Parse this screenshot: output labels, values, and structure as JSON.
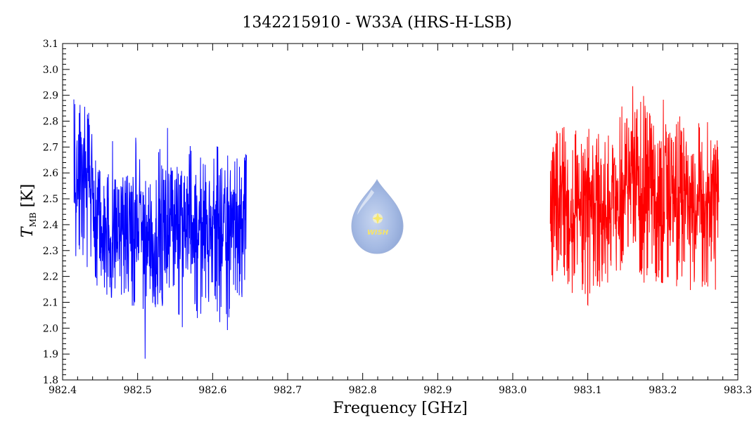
{
  "chart_data": {
    "type": "line",
    "title": "1342215910 - W33A (HRS-H-LSB)",
    "xlabel": "Frequency [GHz]",
    "ylabel_main": "T",
    "ylabel_sub": "MB",
    "ylabel_unit": "[K]",
    "xlim": [
      982.4,
      983.3
    ],
    "ylim": [
      1.8,
      3.1
    ],
    "xticks": [
      "982.4",
      "982.5",
      "982.6",
      "982.7",
      "982.8",
      "982.9",
      "983.0",
      "983.1",
      "983.2",
      "983.3"
    ],
    "yticks": [
      "1.8",
      "1.9",
      "2.0",
      "2.1",
      "2.2",
      "2.3",
      "2.4",
      "2.5",
      "2.6",
      "2.7",
      "2.8",
      "2.9",
      "3.0",
      "3.1"
    ],
    "grid": false,
    "series": [
      {
        "color": "#0000ff",
        "x": [
          982.415,
          982.42,
          982.425,
          982.43,
          982.435,
          982.44,
          982.445,
          982.45,
          982.455,
          982.46,
          982.465,
          982.47,
          982.475,
          982.48,
          982.485,
          982.49,
          982.495,
          982.5,
          982.505,
          982.51,
          982.515,
          982.52,
          982.525,
          982.53,
          982.535,
          982.54,
          982.545,
          982.55,
          982.555,
          982.56,
          982.565,
          982.57,
          982.575,
          982.58,
          982.585,
          982.59,
          982.595,
          982.6,
          982.605,
          982.61,
          982.615,
          982.62,
          982.625,
          982.63,
          982.635,
          982.64,
          982.645
        ],
        "mean": [
          2.55,
          2.58,
          2.6,
          2.56,
          2.5,
          2.48,
          2.45,
          2.42,
          2.4,
          2.38,
          2.36,
          2.35,
          2.38,
          2.4,
          2.37,
          2.36,
          2.35,
          2.38,
          2.4,
          2.36,
          2.34,
          2.32,
          2.36,
          2.4,
          2.38,
          2.36,
          2.4,
          2.42,
          2.38,
          2.36,
          2.38,
          2.4,
          2.42,
          2.4,
          2.38,
          2.35,
          2.38,
          2.4,
          2.42,
          2.4,
          2.38,
          2.4,
          2.42,
          2.4,
          2.38,
          2.4,
          2.42
        ],
        "high": [
          2.93,
          2.85,
          2.93,
          2.86,
          2.84,
          2.73,
          2.7,
          2.62,
          2.6,
          2.68,
          2.8,
          2.62,
          2.55,
          2.58,
          2.68,
          2.55,
          2.7,
          2.78,
          2.58,
          2.6,
          2.55,
          2.72,
          2.58,
          2.76,
          2.6,
          2.79,
          2.62,
          2.65,
          2.6,
          2.63,
          2.55,
          2.75,
          2.65,
          2.58,
          2.72,
          2.65,
          2.6,
          2.65,
          2.75,
          2.62,
          2.72,
          2.7,
          2.6,
          2.68,
          2.65,
          2.68,
          2.68
        ],
        "low": [
          2.22,
          2.28,
          2.3,
          2.24,
          2.2,
          2.18,
          2.15,
          2.14,
          2.16,
          2.1,
          2.12,
          2.08,
          2.05,
          2.1,
          2.13,
          2.07,
          2.08,
          2.1,
          2.16,
          1.86,
          2.13,
          2.08,
          2.05,
          2.1,
          2.04,
          2.13,
          2.08,
          2.05,
          2.0,
          1.98,
          2.13,
          2.05,
          2.1,
          2.0,
          2.06,
          2.12,
          2.08,
          2.14,
          2.05,
          2.0,
          2.1,
          1.95,
          2.12,
          2.15,
          2.1,
          2.12,
          2.2
        ]
      },
      {
        "color": "#ff0000",
        "x": [
          983.05,
          983.055,
          983.06,
          983.065,
          983.07,
          983.075,
          983.08,
          983.085,
          983.09,
          983.095,
          983.1,
          983.105,
          983.11,
          983.115,
          983.12,
          983.125,
          983.13,
          983.135,
          983.14,
          983.145,
          983.15,
          983.155,
          983.16,
          983.165,
          983.17,
          983.175,
          983.18,
          983.185,
          983.19,
          983.195,
          983.2,
          983.205,
          983.21,
          983.215,
          983.22,
          983.225,
          983.23,
          983.235,
          983.24,
          983.245,
          983.25,
          983.255,
          983.26,
          983.265,
          983.27,
          983.275
        ],
        "mean": [
          2.45,
          2.46,
          2.48,
          2.5,
          2.48,
          2.46,
          2.5,
          2.48,
          2.46,
          2.45,
          2.44,
          2.46,
          2.48,
          2.46,
          2.45,
          2.47,
          2.5,
          2.48,
          2.46,
          2.5,
          2.55,
          2.6,
          2.62,
          2.65,
          2.6,
          2.58,
          2.56,
          2.58,
          2.55,
          2.52,
          2.5,
          2.52,
          2.5,
          2.48,
          2.46,
          2.48,
          2.5,
          2.46,
          2.44,
          2.46,
          2.48,
          2.46,
          2.45,
          2.47,
          2.48,
          2.45
        ],
        "high": [
          2.72,
          2.74,
          2.78,
          2.8,
          2.85,
          2.7,
          2.72,
          2.8,
          2.75,
          2.68,
          2.82,
          2.7,
          2.72,
          2.76,
          2.65,
          2.78,
          2.8,
          2.7,
          2.75,
          2.88,
          2.82,
          2.9,
          2.99,
          2.85,
          2.88,
          2.9,
          2.84,
          2.82,
          2.78,
          2.85,
          2.9,
          2.8,
          2.78,
          2.72,
          2.85,
          2.8,
          2.76,
          2.7,
          2.72,
          2.78,
          2.8,
          2.74,
          2.85,
          2.72,
          2.75,
          2.7
        ],
        "low": [
          2.18,
          2.15,
          2.2,
          2.23,
          2.17,
          2.16,
          2.12,
          2.2,
          2.18,
          2.1,
          2.04,
          2.07,
          2.15,
          2.12,
          2.18,
          2.14,
          2.22,
          2.2,
          2.16,
          2.25,
          2.26,
          2.3,
          2.32,
          2.28,
          2.2,
          2.15,
          2.18,
          2.22,
          2.16,
          2.2,
          2.15,
          2.18,
          2.1,
          2.2,
          2.09,
          2.18,
          2.16,
          2.1,
          2.12,
          2.18,
          2.2,
          2.12,
          2.15,
          2.08,
          2.1,
          2.2
        ]
      }
    ],
    "logo_text": "WISH"
  }
}
